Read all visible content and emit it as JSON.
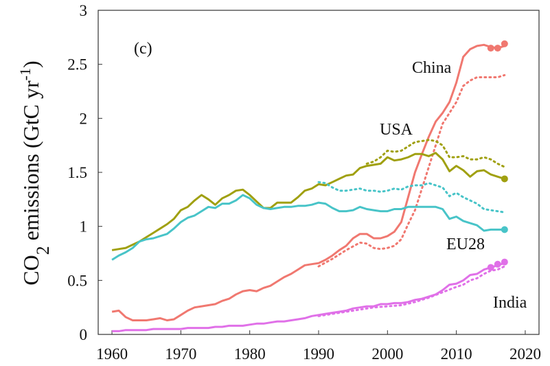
{
  "chart_data": {
    "type": "line",
    "annotation": "(c)",
    "ylabel_parts": [
      "CO",
      "2",
      " emissions (GtC yr",
      "-1",
      ")"
    ],
    "xlim": [
      1958,
      2022
    ],
    "ylim": [
      0,
      3
    ],
    "xticks": [
      1960,
      1970,
      1980,
      1990,
      2000,
      2010,
      2020
    ],
    "yticks": [
      0,
      0.5,
      1,
      1.5,
      2,
      2.5,
      3
    ],
    "x": [
      1960,
      1961,
      1962,
      1963,
      1964,
      1965,
      1966,
      1967,
      1968,
      1969,
      1970,
      1971,
      1972,
      1973,
      1974,
      1975,
      1976,
      1977,
      1978,
      1979,
      1980,
      1981,
      1982,
      1983,
      1984,
      1985,
      1986,
      1987,
      1988,
      1989,
      1990,
      1991,
      1992,
      1993,
      1994,
      1995,
      1996,
      1997,
      1998,
      1999,
      2000,
      2001,
      2002,
      2003,
      2004,
      2005,
      2006,
      2007,
      2008,
      2009,
      2010,
      2011,
      2012,
      2013,
      2014,
      2015,
      2016,
      2017
    ],
    "series": [
      {
        "name": "China",
        "color": "#f07870",
        "values": [
          0.21,
          0.22,
          0.16,
          0.13,
          0.13,
          0.13,
          0.14,
          0.15,
          0.13,
          0.14,
          0.18,
          0.22,
          0.25,
          0.26,
          0.27,
          0.28,
          0.31,
          0.33,
          0.37,
          0.4,
          0.41,
          0.4,
          0.43,
          0.45,
          0.49,
          0.53,
          0.56,
          0.6,
          0.64,
          0.65,
          0.66,
          0.69,
          0.73,
          0.78,
          0.82,
          0.89,
          0.93,
          0.93,
          0.89,
          0.89,
          0.91,
          0.95,
          1.04,
          1.27,
          1.5,
          1.67,
          1.83,
          1.97,
          2.05,
          2.15,
          2.33,
          2.57,
          2.64,
          2.67,
          2.68,
          2.66,
          2.65,
          2.67
        ],
        "dotted": {
          "x": [
            1990,
            1992,
            1994,
            1996,
            1997,
            1998,
            1999,
            2000,
            2001,
            2002,
            2003,
            2004,
            2005,
            2006,
            2007,
            2008,
            2009,
            2010,
            2011,
            2012,
            2013,
            2014,
            2015,
            2016,
            2017
          ],
          "values": [
            0.63,
            0.7,
            0.78,
            0.85,
            0.84,
            0.8,
            0.79,
            0.8,
            0.82,
            0.88,
            1.02,
            1.15,
            1.35,
            1.55,
            1.75,
            1.95,
            2.05,
            2.15,
            2.3,
            2.35,
            2.38,
            2.38,
            2.38,
            2.38,
            2.4
          ]
        },
        "points": {
          "x": [
            2015,
            2016,
            2017
          ],
          "values": [
            2.65,
            2.65,
            2.69
          ]
        }
      },
      {
        "name": "USA",
        "color": "#a0a010",
        "values": [
          0.78,
          0.79,
          0.8,
          0.83,
          0.86,
          0.9,
          0.94,
          0.98,
          1.02,
          1.07,
          1.15,
          1.18,
          1.24,
          1.29,
          1.25,
          1.2,
          1.26,
          1.29,
          1.33,
          1.34,
          1.29,
          1.23,
          1.17,
          1.17,
          1.22,
          1.22,
          1.22,
          1.27,
          1.33,
          1.35,
          1.39,
          1.38,
          1.41,
          1.44,
          1.47,
          1.48,
          1.54,
          1.56,
          1.57,
          1.58,
          1.64,
          1.61,
          1.62,
          1.64,
          1.67,
          1.67,
          1.65,
          1.68,
          1.62,
          1.51,
          1.56,
          1.52,
          1.46,
          1.51,
          1.52,
          1.48,
          1.46,
          1.44
        ],
        "dotted": {
          "x": [
            1997,
            1998,
            1999,
            2000,
            2001,
            2002,
            2003,
            2004,
            2005,
            2006,
            2007,
            2008,
            2009,
            2010,
            2011,
            2012,
            2013,
            2014,
            2015,
            2016,
            2017
          ],
          "values": [
            1.58,
            1.6,
            1.64,
            1.7,
            1.69,
            1.7,
            1.74,
            1.78,
            1.79,
            1.8,
            1.79,
            1.75,
            1.64,
            1.64,
            1.65,
            1.62,
            1.62,
            1.64,
            1.62,
            1.58,
            1.55
          ]
        },
        "points": {
          "x": [
            2017
          ],
          "values": [
            1.44
          ]
        }
      },
      {
        "name": "EU28",
        "color": "#48c4c8",
        "values": [
          0.69,
          0.73,
          0.76,
          0.8,
          0.86,
          0.88,
          0.89,
          0.91,
          0.93,
          0.98,
          1.04,
          1.08,
          1.1,
          1.14,
          1.18,
          1.17,
          1.21,
          1.21,
          1.24,
          1.29,
          1.26,
          1.2,
          1.17,
          1.16,
          1.17,
          1.18,
          1.18,
          1.19,
          1.19,
          1.2,
          1.22,
          1.21,
          1.17,
          1.14,
          1.14,
          1.15,
          1.18,
          1.16,
          1.15,
          1.14,
          1.14,
          1.16,
          1.16,
          1.18,
          1.18,
          1.18,
          1.18,
          1.18,
          1.16,
          1.07,
          1.09,
          1.05,
          1.03,
          1.01,
          0.96,
          0.97,
          0.97,
          0.97
        ],
        "dotted": {
          "x": [
            1990,
            1991,
            1992,
            1993,
            1994,
            1995,
            1996,
            1997,
            1998,
            1999,
            2000,
            2001,
            2002,
            2003,
            2004,
            2005,
            2006,
            2007,
            2008,
            2009,
            2010,
            2011,
            2012,
            2013,
            2014,
            2015,
            2016,
            2017
          ],
          "values": [
            1.41,
            1.4,
            1.36,
            1.33,
            1.33,
            1.34,
            1.35,
            1.33,
            1.33,
            1.32,
            1.33,
            1.35,
            1.34,
            1.37,
            1.38,
            1.38,
            1.4,
            1.38,
            1.36,
            1.28,
            1.31,
            1.27,
            1.24,
            1.21,
            1.16,
            1.15,
            1.14,
            1.13
          ]
        },
        "points": {
          "x": [
            2017
          ],
          "values": [
            0.97
          ]
        }
      },
      {
        "name": "India",
        "color": "#e070e8",
        "values": [
          0.03,
          0.03,
          0.04,
          0.04,
          0.04,
          0.04,
          0.05,
          0.05,
          0.05,
          0.05,
          0.05,
          0.06,
          0.06,
          0.06,
          0.06,
          0.07,
          0.07,
          0.08,
          0.08,
          0.08,
          0.09,
          0.1,
          0.1,
          0.11,
          0.12,
          0.12,
          0.13,
          0.14,
          0.15,
          0.17,
          0.18,
          0.19,
          0.2,
          0.21,
          0.22,
          0.24,
          0.25,
          0.26,
          0.26,
          0.28,
          0.28,
          0.29,
          0.29,
          0.3,
          0.32,
          0.33,
          0.35,
          0.37,
          0.41,
          0.46,
          0.47,
          0.5,
          0.55,
          0.56,
          0.6,
          0.62,
          0.64,
          0.66
        ],
        "dotted": {
          "x": [
            1990,
            1992,
            1994,
            1996,
            1998,
            2000,
            2002,
            2004,
            2006,
            2008,
            2010,
            2011,
            2012,
            2013,
            2014,
            2015,
            2016,
            2017
          ],
          "values": [
            0.17,
            0.19,
            0.21,
            0.23,
            0.25,
            0.26,
            0.27,
            0.3,
            0.34,
            0.39,
            0.44,
            0.46,
            0.5,
            0.52,
            0.56,
            0.59,
            0.6,
            0.63
          ]
        },
        "points": {
          "x": [
            2015,
            2016,
            2017
          ],
          "values": [
            0.62,
            0.65,
            0.67
          ]
        }
      }
    ]
  }
}
